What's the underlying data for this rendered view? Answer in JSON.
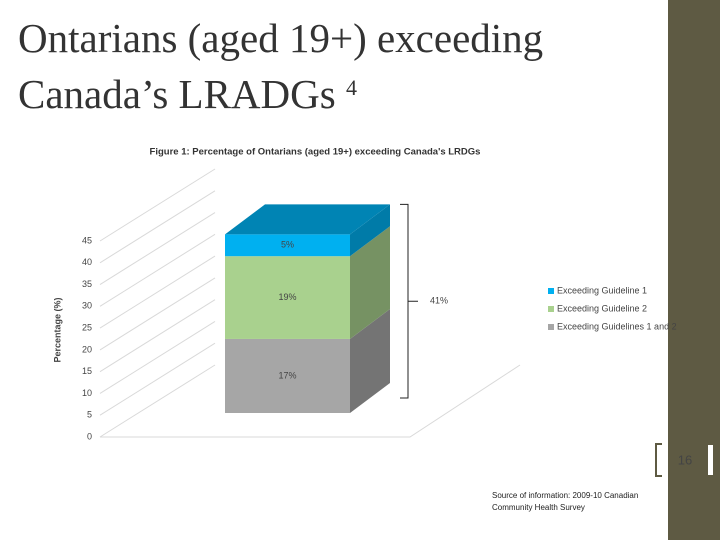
{
  "slide": {
    "title_line1": "Ontarians (aged 19+) exceeding",
    "title_line2": "Canada’s LRADGs",
    "title_superscript": "4",
    "page_number": "16",
    "source_line1": "Source of information: 2009-10 Canadian",
    "source_line2": "Community Health Survey"
  },
  "chart_data": {
    "type": "bar",
    "stacked": true,
    "title": "Figure 1: Percentage of Ontarians (aged 19+) exceeding Canada's LRDGs",
    "y_label": "Percentage (%)",
    "categories": [
      null
    ],
    "series": [
      {
        "name": "Exceeding Guideline 1",
        "color": "#00b0f0",
        "values": [
          5
        ],
        "value_labels": [
          "5%"
        ]
      },
      {
        "name": "Exceeding Guideline 2",
        "color": "#a9d18e",
        "values": [
          19
        ],
        "value_labels": [
          "19%"
        ]
      },
      {
        "name": "Exceeding Guidelines 1 and 2",
        "color": "#a6a6a6",
        "values": [
          17
        ],
        "value_labels": [
          "17%"
        ]
      }
    ],
    "total_label": {
      "value": 41,
      "label": "41%"
    },
    "ylim": [
      0,
      45
    ],
    "yticks": [
      0,
      5,
      10,
      15,
      20,
      25,
      30,
      35,
      40,
      45
    ],
    "grid": true,
    "legend": "right"
  }
}
